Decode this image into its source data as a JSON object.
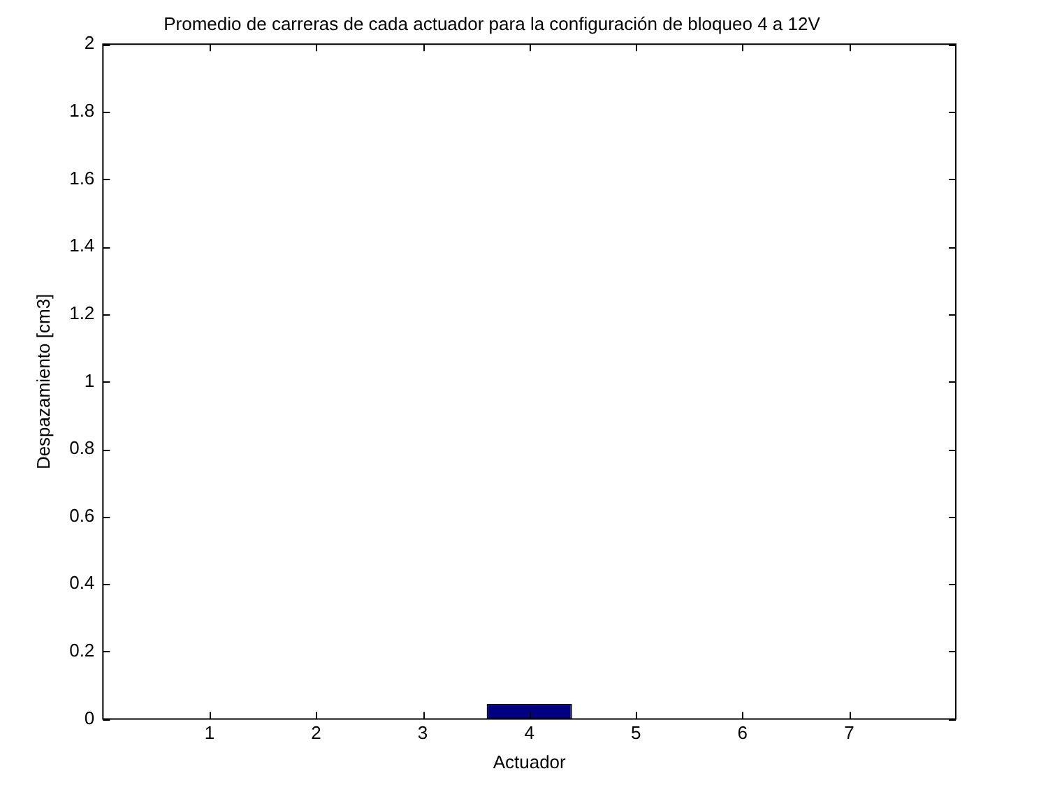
{
  "chart_data": {
    "type": "bar",
    "title": "Promedio de carreras de cada actuador para la configuración de bloqueo 4 a 12V",
    "xlabel": "Actuador",
    "ylabel": "Despazamiento [cm3]",
    "x": [
      1,
      2,
      3,
      4,
      5,
      6,
      7
    ],
    "values": [
      0,
      0,
      0,
      0.045,
      0,
      0,
      0
    ],
    "color": "#000080",
    "xlim": [
      0,
      8
    ],
    "xticks": [
      1,
      2,
      3,
      4,
      5,
      6,
      7
    ],
    "ylim": [
      0,
      2
    ],
    "yticks": [
      0,
      0.2,
      0.4,
      0.6,
      0.8,
      1,
      1.2,
      1.4,
      1.6,
      1.8,
      2
    ],
    "grid": false,
    "legend": false
  }
}
